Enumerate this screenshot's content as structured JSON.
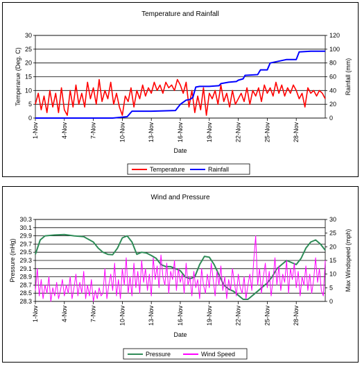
{
  "chart_data": [
    {
      "type": "line",
      "title": "Temperature and Rainfall",
      "xlabel": "Date",
      "ylabel": "Temperarue (Deg. C)",
      "y2label": "Rainfall (mm)",
      "x_ticks": [
        "1-Nov",
        "4-Nov",
        "7-Nov",
        "10-Nov",
        "13-Nov",
        "16-Nov",
        "19-Nov",
        "22-Nov",
        "25-Nov",
        "28-Nov"
      ],
      "y_ticks": [
        "0",
        "5",
        "10",
        "15",
        "20",
        "25",
        "30"
      ],
      "y2_ticks": [
        "0",
        "20",
        "40",
        "60",
        "80",
        "100",
        "120"
      ],
      "ylim": [
        0,
        30
      ],
      "y2lim": [
        0,
        120
      ],
      "xlim_days": [
        1,
        31
      ],
      "grid": "horizontal",
      "legend_position": "bottom",
      "series": [
        {
          "name": "Temperature",
          "axis": "left",
          "color": "#ff0000",
          "x": [
            1,
            1.3,
            1.6,
            1.9,
            2.2,
            2.5,
            2.8,
            3.1,
            3.4,
            3.7,
            4,
            4.3,
            4.6,
            4.9,
            5.2,
            5.5,
            5.8,
            6.1,
            6.4,
            6.7,
            7,
            7.3,
            7.6,
            7.9,
            8.2,
            8.5,
            8.8,
            9.1,
            9.4,
            9.7,
            10,
            10.3,
            10.6,
            10.9,
            11.2,
            11.5,
            11.8,
            12.1,
            12.4,
            12.7,
            13,
            13.3,
            13.6,
            13.9,
            14.2,
            14.5,
            14.8,
            15.1,
            15.4,
            15.7,
            16,
            16.3,
            16.6,
            16.9,
            17.2,
            17.5,
            17.8,
            18.1,
            18.4,
            18.7,
            19,
            19.3,
            19.6,
            19.9,
            20.2,
            20.5,
            20.8,
            21.1,
            21.4,
            21.7,
            22,
            22.3,
            22.6,
            22.9,
            23.2,
            23.5,
            23.8,
            24.1,
            24.4,
            24.7,
            25,
            25.3,
            25.6,
            25.9,
            26.2,
            26.5,
            26.8,
            27.1,
            27.4,
            27.7,
            28,
            28.3,
            28.6,
            28.9,
            29.2,
            29.5,
            29.8,
            30.1,
            30.4,
            30.7,
            31
          ],
          "values": [
            5,
            9,
            3,
            8,
            2,
            10,
            4,
            9,
            2,
            11,
            3,
            1,
            10,
            4,
            12,
            5,
            9,
            4,
            13,
            7,
            11,
            5,
            14,
            6,
            10,
            7,
            13,
            5,
            9,
            4,
            1,
            8,
            6,
            11,
            4,
            10,
            7,
            12,
            8,
            11,
            9,
            13,
            10,
            12,
            9,
            13,
            11,
            12,
            10,
            14,
            12,
            9,
            13,
            4,
            10,
            2,
            8,
            3,
            11,
            1,
            9,
            7,
            10,
            5,
            12,
            6,
            9,
            4,
            10,
            5,
            7,
            9,
            6,
            11,
            5,
            10,
            8,
            11,
            6,
            12,
            9,
            11,
            8,
            13,
            9,
            12,
            8,
            11,
            9,
            12,
            10,
            7,
            9,
            4,
            11,
            9,
            10,
            8,
            10,
            9,
            7
          ]
        },
        {
          "name": "Rainfall",
          "axis": "right",
          "color": "#0000ff",
          "x": [
            1,
            9,
            10.5,
            11,
            13,
            15.5,
            16,
            16.6,
            17,
            17.3,
            17.5,
            17.6,
            18,
            19,
            20,
            20.2,
            21,
            21.8,
            22,
            22.5,
            22.7,
            24,
            24.3,
            25,
            25.3,
            26,
            27,
            28,
            28.3,
            29.5,
            31
          ],
          "values": [
            0,
            0,
            2,
            10,
            10,
            11,
            20,
            26,
            27,
            30,
            40,
            45,
            46,
            46,
            47,
            50,
            52,
            53,
            55,
            57,
            62,
            63,
            70,
            70,
            80,
            82,
            85,
            85,
            96,
            97,
            97
          ]
        }
      ]
    },
    {
      "type": "line",
      "title": "Wind and Pressure",
      "xlabel": "Date",
      "ylabel": "Pressure (inHg)",
      "y2label": "Max Windspeed (mph)",
      "x_ticks": [
        "1-Nov",
        "4-Nov",
        "7-Nov",
        "10-Nov",
        "13-Nov",
        "16-Nov",
        "19-Nov",
        "22-Nov",
        "25-Nov",
        "28-Nov"
      ],
      "y_ticks": [
        "28.3",
        "28.5",
        "28.7",
        "28.9",
        "29.1",
        "29.3",
        "29.5",
        "29.7",
        "29.9",
        "30.1",
        "30.3"
      ],
      "y2_ticks": [
        "0",
        "5",
        "10",
        "15",
        "20",
        "25",
        "30"
      ],
      "ylim": [
        28.3,
        30.3
      ],
      "y2lim": [
        0,
        30
      ],
      "xlim_days": [
        1,
        31
      ],
      "grid": "horizontal",
      "legend_position": "bottom",
      "series": [
        {
          "name": "Pressure",
          "axis": "left",
          "color": "#2e8b57",
          "x": [
            1,
            1.5,
            2,
            3,
            4,
            5,
            6,
            7,
            7.5,
            8,
            8.5,
            9,
            9.5,
            10,
            10.5,
            11,
            11.5,
            12,
            12.5,
            13,
            13.5,
            14,
            14.5,
            15,
            15.5,
            16,
            16.5,
            17,
            17.5,
            18,
            18.5,
            19,
            19.5,
            20,
            20.5,
            21,
            21.5,
            22,
            22.5,
            23,
            23.5,
            24,
            24.5,
            25,
            25.5,
            26,
            26.5,
            27,
            27.5,
            28,
            28.5,
            29,
            29.5,
            30,
            30.5,
            31
          ],
          "values": [
            29.45,
            29.8,
            29.9,
            29.92,
            29.93,
            29.9,
            29.88,
            29.75,
            29.6,
            29.5,
            29.45,
            29.44,
            29.6,
            29.85,
            29.9,
            29.75,
            29.45,
            29.5,
            29.48,
            29.42,
            29.35,
            29.2,
            29.15,
            29.15,
            29.1,
            29.05,
            28.9,
            28.85,
            28.9,
            29.2,
            29.4,
            29.38,
            29.2,
            28.95,
            28.7,
            28.6,
            28.55,
            28.45,
            28.35,
            28.35,
            28.45,
            28.55,
            28.65,
            28.75,
            28.9,
            29.1,
            29.2,
            29.3,
            29.25,
            29.2,
            29.35,
            29.6,
            29.75,
            29.8,
            29.7,
            29.55
          ]
        },
        {
          "name": "Wind Speed",
          "axis": "right",
          "color": "#ff00ff",
          "x": [
            1,
            1.2,
            1.4,
            1.6,
            1.8,
            2,
            2.2,
            2.4,
            2.6,
            2.8,
            3,
            3.2,
            3.4,
            3.6,
            3.8,
            4,
            4.2,
            4.4,
            4.6,
            4.8,
            5,
            5.2,
            5.4,
            5.6,
            5.8,
            6,
            6.2,
            6.4,
            6.6,
            6.8,
            7,
            7.2,
            7.4,
            7.6,
            7.8,
            8,
            8.2,
            8.4,
            8.6,
            8.8,
            9,
            9.2,
            9.4,
            9.6,
            9.8,
            10,
            10.2,
            10.4,
            10.6,
            10.8,
            11,
            11.2,
            11.4,
            11.6,
            11.8,
            12,
            12.2,
            12.4,
            12.6,
            12.8,
            13,
            13.2,
            13.4,
            13.6,
            13.8,
            14,
            14.2,
            14.4,
            14.6,
            14.8,
            15,
            15.2,
            15.4,
            15.6,
            15.8,
            16,
            16.2,
            16.4,
            16.6,
            16.8,
            17,
            17.2,
            17.4,
            17.6,
            17.8,
            18,
            18.2,
            18.4,
            18.6,
            18.8,
            19,
            19.2,
            19.4,
            19.6,
            19.8,
            20,
            20.2,
            20.4,
            20.6,
            20.8,
            21,
            21.2,
            21.4,
            21.6,
            21.8,
            22,
            22.2,
            22.4,
            22.6,
            22.8,
            23,
            23.2,
            23.4,
            23.6,
            23.8,
            24,
            24.2,
            24.4,
            24.6,
            24.8,
            25,
            25.2,
            25.4,
            25.6,
            25.8,
            26,
            26.2,
            26.4,
            26.6,
            26.8,
            27,
            27.2,
            27.4,
            27.6,
            27.8,
            28,
            28.2,
            28.4,
            28.6,
            28.8,
            29,
            29.2,
            29.4,
            29.6,
            29.8,
            30,
            30.2,
            30.4,
            30.6,
            30.8,
            31
          ],
          "values": [
            4,
            12,
            2,
            8,
            1,
            6,
            3,
            9,
            0,
            5,
            2,
            7,
            1,
            4,
            8,
            2,
            6,
            3,
            9,
            1,
            5,
            10,
            2,
            7,
            3,
            11,
            1,
            6,
            2,
            8,
            0,
            4,
            1,
            5,
            2,
            3,
            12,
            1,
            6,
            10,
            4,
            14,
            2,
            8,
            1,
            12,
            6,
            16,
            3,
            9,
            2,
            14,
            5,
            11,
            3,
            15,
            7,
            12,
            4,
            10,
            2,
            16,
            8,
            13,
            5,
            17,
            9,
            6,
            14,
            3,
            11,
            8,
            15,
            4,
            12,
            7,
            10,
            3,
            14,
            6,
            9,
            2,
            11,
            5,
            8,
            1,
            12,
            6,
            3,
            10,
            5,
            14,
            8,
            2,
            11,
            6,
            13,
            4,
            9,
            1,
            8,
            4,
            12,
            7,
            2,
            10,
            5,
            3,
            9,
            1,
            6,
            10,
            4,
            15,
            24,
            6,
            12,
            3,
            9,
            14,
            5,
            11,
            2,
            8,
            16,
            6,
            13,
            4,
            10,
            7,
            15,
            3,
            12,
            8,
            14,
            5,
            11,
            2,
            9,
            6,
            13,
            4,
            10,
            3,
            8,
            16,
            7,
            12,
            4,
            2,
            15
          ]
        }
      ]
    }
  ]
}
